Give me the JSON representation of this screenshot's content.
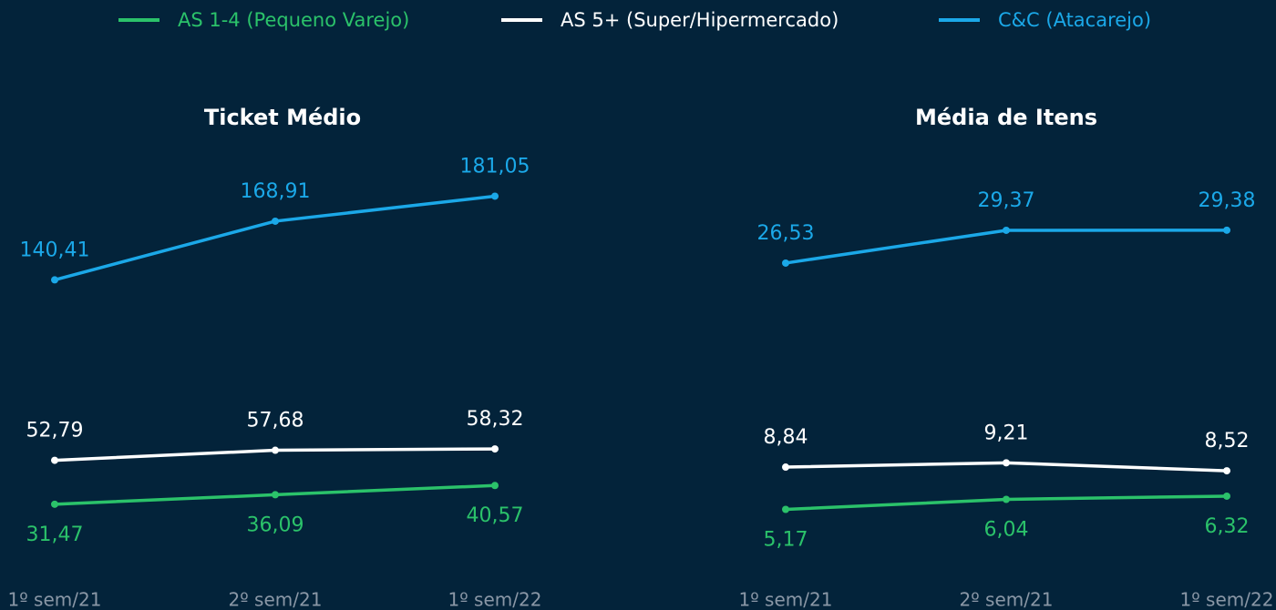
{
  "chart_data": [
    {
      "type": "line",
      "title": "Ticket Médio",
      "categories": [
        "1º sem/21",
        "2º sem/21",
        "1º sem/22"
      ],
      "ylim": [
        0,
        210
      ],
      "series": [
        {
          "name": "AS 1-4 (Pequeno Varejo)",
          "color": "#2bc26a",
          "values": [
            31.47,
            36.09,
            40.57
          ],
          "value_labels": [
            "31,47",
            "36,09",
            "40,57"
          ]
        },
        {
          "name": "AS 5+ (Super/Hipermercado)",
          "color": "#ffffff",
          "values": [
            52.79,
            57.68,
            58.32
          ],
          "value_labels": [
            "52,79",
            "57,68",
            "58,32"
          ]
        },
        {
          "name": "C&C (Atacarejo)",
          "color": "#1ba8e8",
          "values": [
            140.41,
            168.91,
            181.05
          ],
          "value_labels": [
            "140,41",
            "168,91",
            "181,05"
          ]
        }
      ]
    },
    {
      "type": "line",
      "title": "Média de Itens",
      "categories": [
        "1º sem/21",
        "2º sem/21",
        "1º sem/22"
      ],
      "ylim": [
        0,
        37.5
      ],
      "series": [
        {
          "name": "AS 1-4 (Pequeno Varejo)",
          "color": "#2bc26a",
          "values": [
            5.17,
            6.04,
            6.32
          ],
          "value_labels": [
            "5,17",
            "6,04",
            "6,32"
          ]
        },
        {
          "name": "AS 5+ (Super/Hipermercado)",
          "color": "#ffffff",
          "values": [
            8.84,
            9.21,
            8.52
          ],
          "value_labels": [
            "8,84",
            "9,21",
            "8,52"
          ]
        },
        {
          "name": "C&C (Atacarejo)",
          "color": "#1ba8e8",
          "values": [
            26.53,
            29.37,
            29.38
          ],
          "value_labels": [
            "26,53",
            "29,37",
            "29,38"
          ]
        }
      ]
    }
  ]
}
